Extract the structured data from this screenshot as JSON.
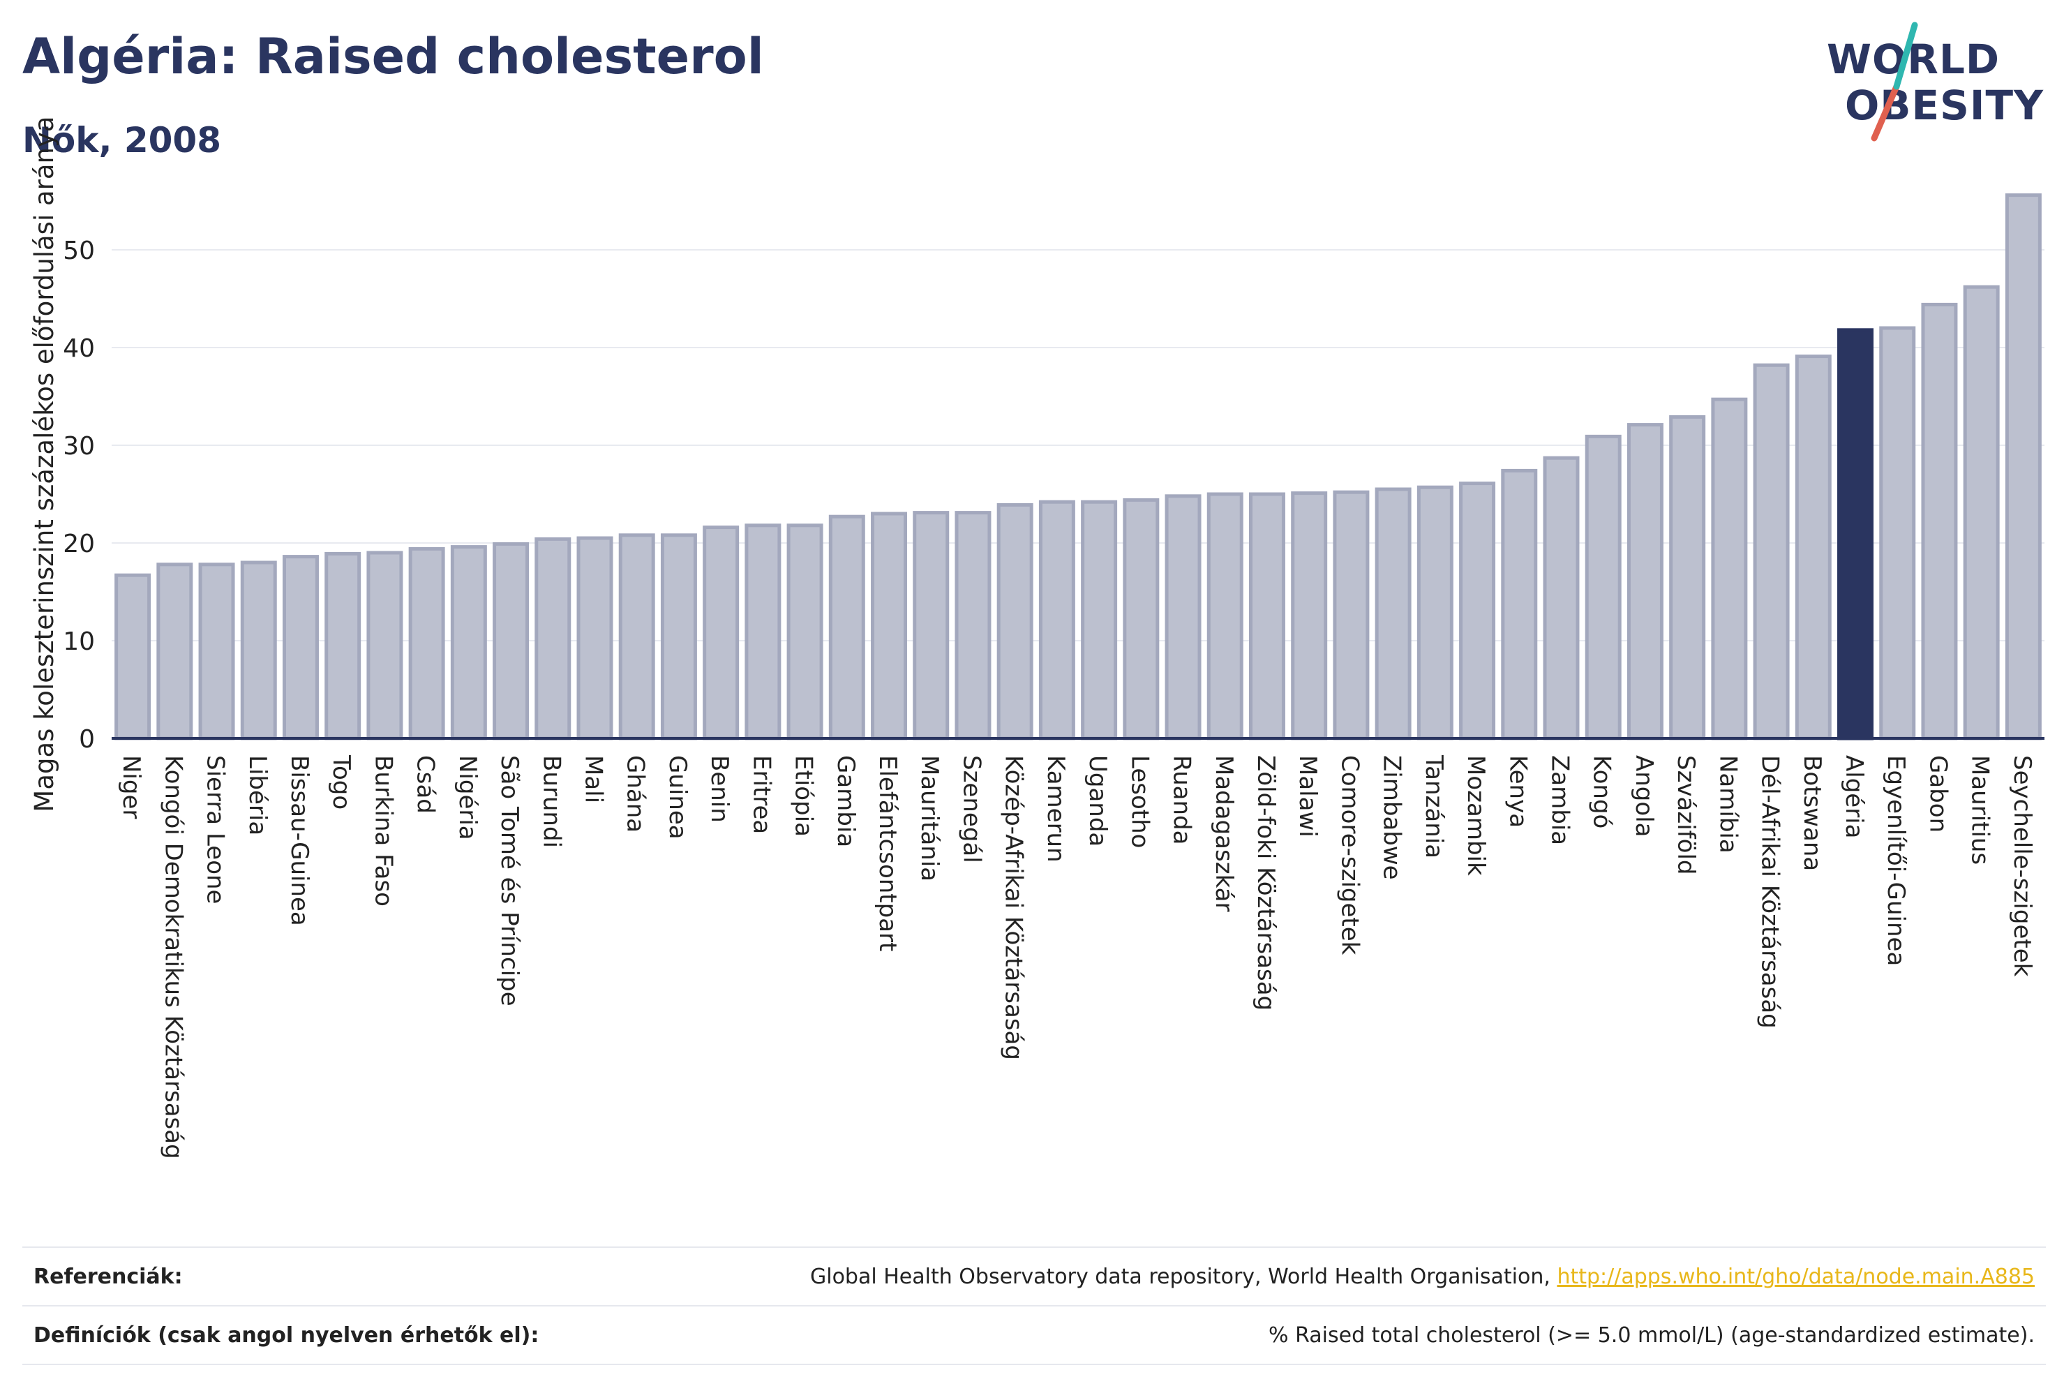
{
  "header": {
    "title": "Algéria: Raised cholesterol",
    "subtitle": "Nők, 2008"
  },
  "logo": {
    "line1": "WORLD",
    "line2": "OBESITY",
    "accent_colors": [
      "#2fb7b0",
      "#e0604f"
    ]
  },
  "chart_data": {
    "type": "bar",
    "title": "Algéria: Raised cholesterol",
    "subtitle": "Nők, 2008",
    "xlabel": "",
    "ylabel": "Magas koleszterinszint százalékos előfordulási aránya",
    "ylim": [
      0,
      57
    ],
    "yticks": [
      0,
      10,
      20,
      30,
      40,
      50
    ],
    "grid": true,
    "bar_color": "#bcc0cf",
    "bar_edge_color": "#a3a8bd",
    "highlight_color": "#2a3560",
    "highlight": "Algéria",
    "categories": [
      "Niger",
      "Kongói Demokratikus Köztársaság",
      "Sierra Leone",
      "Libéria",
      "Bissau-Guinea",
      "Togo",
      "Burkina Faso",
      "Csád",
      "Nigéria",
      "São Tomé és Príncipe",
      "Burundi",
      "Mali",
      "Ghána",
      "Guinea",
      "Benin",
      "Eritrea",
      "Etiópia",
      "Gambia",
      "Elefántcsontpart",
      "Mauritánia",
      "Szenegál",
      "Közép-Afrikai Köztársaság",
      "Kamerun",
      "Uganda",
      "Lesotho",
      "Ruanda",
      "Madagaszkár",
      "Zöld-foki Köztársaság",
      "Malawi",
      "Comore-szigetek",
      "Zimbabwe",
      "Tanzánia",
      "Mozambik",
      "Kenya",
      "Zambia",
      "Kongó",
      "Angola",
      "Szváziföld",
      "Namíbia",
      "Dél-Afrikai Köztársaság",
      "Botswana",
      "Algéria",
      "Egyenlítői-Guinea",
      "Gabon",
      "Mauritius",
      "Seychelle-szigetek"
    ],
    "values": [
      16.7,
      17.8,
      17.8,
      18.0,
      18.6,
      18.9,
      19.0,
      19.4,
      19.6,
      19.9,
      20.4,
      20.5,
      20.8,
      20.8,
      21.6,
      21.8,
      21.8,
      22.7,
      23.0,
      23.1,
      23.1,
      23.9,
      24.2,
      24.2,
      24.4,
      24.8,
      25.0,
      25.0,
      25.1,
      25.2,
      25.5,
      25.7,
      26.1,
      27.4,
      28.7,
      30.9,
      32.1,
      32.9,
      34.7,
      38.2,
      39.1,
      41.8,
      42.0,
      44.4,
      46.2,
      55.6
    ]
  },
  "references": {
    "label": "Referenciák:",
    "text": "Global Health Observatory data repository, World Health Organisation,",
    "link": "http://apps.who.int/gho/data/node.main.A885"
  },
  "definitions": {
    "label": "Definíciók (csak angol nyelven érhetők el):",
    "text": "% Raised total cholesterol (>= 5.0 mmol/L) (age-standardized estimate)."
  }
}
